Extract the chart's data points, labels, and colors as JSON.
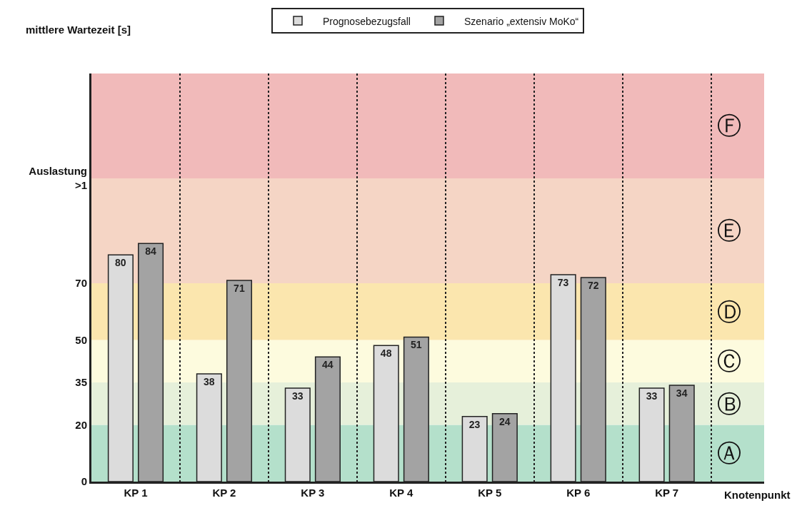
{
  "chart_data": {
    "type": "bar",
    "ylabel": "mittlere Wartezeit [s]",
    "xlabel": "Knotenpunkt",
    "categories": [
      "KP 1",
      "KP 2",
      "KP 3",
      "KP 4",
      "KP 5",
      "KP 6",
      "KP 7"
    ],
    "series": [
      {
        "name": "Prognosebezugsfall",
        "color": "#dcdcdc",
        "values": [
          80,
          38,
          33,
          48,
          23,
          73,
          33
        ]
      },
      {
        "name": "Szenario „extensiv MoKo“",
        "color": "#a3a3a3",
        "values": [
          84,
          71,
          44,
          51,
          24,
          72,
          34
        ]
      }
    ],
    "data_labels": true,
    "ylim": [
      0,
      144
    ],
    "yticks": [
      0,
      20,
      35,
      50,
      70,
      {
        "value": 107,
        "label": "Auslastung\n>1"
      }
    ],
    "bands": [
      {
        "axis": "y",
        "from": 0,
        "to": 20,
        "label": "Ⓐ",
        "color": "#b4e0cb"
      },
      {
        "axis": "y",
        "from": 20,
        "to": 35,
        "label": "Ⓑ",
        "color": "#e6f0da"
      },
      {
        "axis": "y",
        "from": 35,
        "to": 50,
        "label": "Ⓒ",
        "color": "#fdfbde"
      },
      {
        "axis": "y",
        "from": 50,
        "to": 70,
        "label": "Ⓓ",
        "color": "#fbe6ae"
      },
      {
        "axis": "y",
        "from": 70,
        "to": 107,
        "label": "Ⓔ",
        "color": "#f5d5c5"
      },
      {
        "axis": "y",
        "from": 107,
        "to": 144,
        "label": "Ⓕ",
        "color": "#f1baba"
      }
    ],
    "grid": "x",
    "legend": "top"
  }
}
